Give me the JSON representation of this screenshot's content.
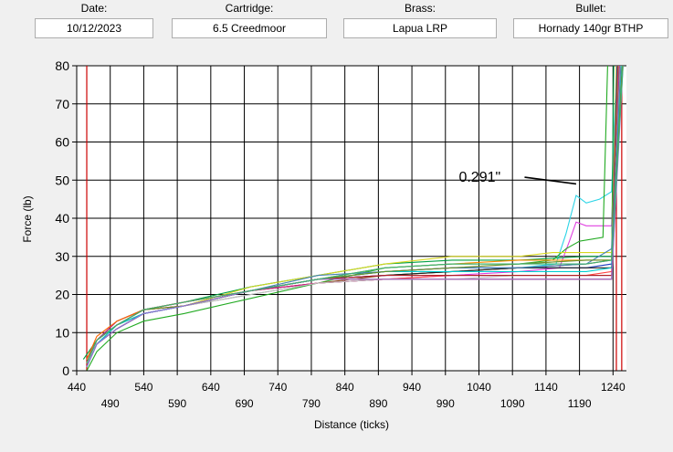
{
  "header": {
    "date_label": "Date:",
    "date_value": "10/12/2023",
    "cartridge_label": "Cartridge:",
    "cartridge_value": "6.5 Creedmoor",
    "brass_label": "Brass:",
    "brass_value": "Lapua LRP",
    "bullet_label": "Bullet:",
    "bullet_value": "Hornady 140gr BTHP"
  },
  "chart_data": {
    "type": "line",
    "title": "",
    "xlabel": "Distance (ticks)",
    "ylabel": "Force (lb)",
    "xlim": [
      440,
      1260
    ],
    "ylim": [
      0,
      80
    ],
    "grid": true,
    "xticks": [
      440,
      490,
      540,
      590,
      640,
      690,
      740,
      790,
      840,
      890,
      940,
      990,
      1040,
      1090,
      1140,
      1190,
      1240
    ],
    "yticks": [
      0,
      10,
      20,
      30,
      40,
      50,
      60,
      70,
      80
    ],
    "vertical_markers": [
      455,
      1245,
      1253
    ],
    "marker_color": "#cc0000",
    "annotation": {
      "text": "0.291\"",
      "x": 1010,
      "y": 51,
      "arrow_to_x": 1185,
      "arrow_to_y": 49
    },
    "series": [
      {
        "color": "#2bd4e6",
        "points": [
          [
            455,
            2
          ],
          [
            470,
            8
          ],
          [
            500,
            12
          ],
          [
            540,
            15
          ],
          [
            600,
            17
          ],
          [
            700,
            21
          ],
          [
            800,
            24
          ],
          [
            900,
            25
          ],
          [
            1000,
            26
          ],
          [
            1100,
            27
          ],
          [
            1155,
            28
          ],
          [
            1170,
            36
          ],
          [
            1185,
            46
          ],
          [
            1200,
            44
          ],
          [
            1220,
            45
          ],
          [
            1238,
            47
          ],
          [
            1243,
            70
          ],
          [
            1248,
            80
          ]
        ]
      },
      {
        "color": "#e040e0",
        "points": [
          [
            455,
            1
          ],
          [
            470,
            7
          ],
          [
            500,
            12
          ],
          [
            540,
            15
          ],
          [
            600,
            17
          ],
          [
            700,
            21
          ],
          [
            800,
            23
          ],
          [
            900,
            24
          ],
          [
            1000,
            25
          ],
          [
            1100,
            26
          ],
          [
            1160,
            27
          ],
          [
            1175,
            34
          ],
          [
            1185,
            39
          ],
          [
            1200,
            38
          ],
          [
            1238,
            38
          ],
          [
            1244,
            70
          ],
          [
            1249,
            80
          ]
        ]
      },
      {
        "color": "#22aa22",
        "points": [
          [
            455,
            0
          ],
          [
            470,
            5
          ],
          [
            500,
            10
          ],
          [
            540,
            13
          ],
          [
            600,
            15
          ],
          [
            700,
            19
          ],
          [
            800,
            23
          ],
          [
            900,
            27
          ],
          [
            1000,
            28
          ],
          [
            1100,
            28
          ],
          [
            1150,
            29
          ],
          [
            1170,
            32
          ],
          [
            1190,
            34
          ],
          [
            1225,
            35
          ],
          [
            1232,
            80
          ]
        ]
      },
      {
        "color": "#00a040",
        "points": [
          [
            450,
            3
          ],
          [
            470,
            8
          ],
          [
            500,
            13
          ],
          [
            540,
            16
          ],
          [
            600,
            18
          ],
          [
            700,
            22
          ],
          [
            800,
            25
          ],
          [
            900,
            28
          ],
          [
            1000,
            29
          ],
          [
            1100,
            29
          ],
          [
            1200,
            30
          ],
          [
            1238,
            30
          ],
          [
            1241,
            80
          ]
        ]
      },
      {
        "color": "#d8d820",
        "points": [
          [
            455,
            2
          ],
          [
            470,
            8
          ],
          [
            500,
            12
          ],
          [
            540,
            16
          ],
          [
            600,
            17
          ],
          [
            700,
            22
          ],
          [
            800,
            25
          ],
          [
            900,
            28
          ],
          [
            1000,
            30
          ],
          [
            1100,
            30
          ],
          [
            1150,
            31
          ],
          [
            1238,
            31
          ],
          [
            1245,
            80
          ]
        ]
      },
      {
        "color": "#1f3fbf",
        "points": [
          [
            455,
            2
          ],
          [
            470,
            8
          ],
          [
            500,
            12
          ],
          [
            540,
            15
          ],
          [
            600,
            17
          ],
          [
            700,
            21
          ],
          [
            800,
            24
          ],
          [
            900,
            26
          ],
          [
            1000,
            27
          ],
          [
            1100,
            27
          ],
          [
            1200,
            27
          ],
          [
            1238,
            28
          ],
          [
            1246,
            80
          ]
        ]
      },
      {
        "color": "#8b4513",
        "points": [
          [
            455,
            1
          ],
          [
            470,
            7
          ],
          [
            500,
            11
          ],
          [
            540,
            15
          ],
          [
            600,
            17
          ],
          [
            700,
            21
          ],
          [
            800,
            23
          ],
          [
            900,
            25
          ],
          [
            1000,
            26
          ],
          [
            1100,
            27
          ],
          [
            1200,
            28
          ],
          [
            1238,
            29
          ],
          [
            1247,
            80
          ]
        ]
      },
      {
        "color": "#ff4040",
        "points": [
          [
            455,
            2
          ],
          [
            470,
            8
          ],
          [
            500,
            12
          ],
          [
            540,
            16
          ],
          [
            600,
            17
          ],
          [
            700,
            21
          ],
          [
            800,
            23
          ],
          [
            900,
            24
          ],
          [
            1000,
            25
          ],
          [
            1100,
            25
          ],
          [
            1200,
            25
          ],
          [
            1238,
            26
          ],
          [
            1248,
            80
          ]
        ]
      },
      {
        "color": "#7f7f7f",
        "points": [
          [
            455,
            3
          ],
          [
            470,
            8
          ],
          [
            500,
            12
          ],
          [
            540,
            15
          ],
          [
            600,
            17
          ],
          [
            700,
            20
          ],
          [
            800,
            23
          ],
          [
            900,
            24
          ],
          [
            1000,
            24
          ],
          [
            1100,
            24
          ],
          [
            1200,
            24
          ],
          [
            1238,
            24
          ],
          [
            1249,
            80
          ]
        ]
      },
      {
        "color": "#202020",
        "points": [
          [
            455,
            1
          ],
          [
            470,
            7
          ],
          [
            500,
            11
          ],
          [
            540,
            15
          ],
          [
            600,
            17
          ],
          [
            700,
            21
          ],
          [
            800,
            24
          ],
          [
            900,
            25
          ],
          [
            1000,
            26
          ],
          [
            1100,
            27
          ],
          [
            1200,
            27
          ],
          [
            1238,
            27
          ],
          [
            1250,
            80
          ]
        ]
      },
      {
        "color": "#a020f0",
        "points": [
          [
            455,
            2
          ],
          [
            470,
            8
          ],
          [
            500,
            12
          ],
          [
            540,
            16
          ],
          [
            600,
            18
          ],
          [
            700,
            21
          ],
          [
            800,
            24
          ],
          [
            900,
            25
          ],
          [
            1000,
            25
          ],
          [
            1100,
            25
          ],
          [
            1200,
            25
          ],
          [
            1238,
            25
          ],
          [
            1250,
            80
          ]
        ]
      },
      {
        "color": "#ff8c00",
        "points": [
          [
            455,
            1
          ],
          [
            470,
            7
          ],
          [
            500,
            12
          ],
          [
            540,
            15
          ],
          [
            600,
            17
          ],
          [
            700,
            21
          ],
          [
            800,
            24
          ],
          [
            900,
            27
          ],
          [
            1000,
            28
          ],
          [
            1100,
            29
          ],
          [
            1200,
            29
          ],
          [
            1238,
            29
          ],
          [
            1251,
            80
          ]
        ]
      },
      {
        "color": "#8fbc8f",
        "points": [
          [
            455,
            2
          ],
          [
            470,
            8
          ],
          [
            500,
            12
          ],
          [
            540,
            16
          ],
          [
            600,
            17
          ],
          [
            700,
            21
          ],
          [
            800,
            24
          ],
          [
            900,
            27
          ],
          [
            1000,
            28
          ],
          [
            1100,
            28
          ],
          [
            1200,
            29
          ],
          [
            1238,
            29
          ],
          [
            1251,
            80
          ]
        ]
      },
      {
        "color": "#c71585",
        "points": [
          [
            455,
            2
          ],
          [
            470,
            8
          ],
          [
            500,
            13
          ],
          [
            540,
            16
          ],
          [
            600,
            18
          ],
          [
            700,
            21
          ],
          [
            800,
            23
          ],
          [
            900,
            24
          ],
          [
            1000,
            24
          ],
          [
            1100,
            24
          ],
          [
            1200,
            24
          ],
          [
            1238,
            24
          ],
          [
            1252,
            80
          ]
        ]
      },
      {
        "color": "#4682b4",
        "points": [
          [
            455,
            1
          ],
          [
            470,
            7
          ],
          [
            500,
            12
          ],
          [
            540,
            15
          ],
          [
            600,
            17
          ],
          [
            700,
            21
          ],
          [
            800,
            25
          ],
          [
            900,
            26
          ],
          [
            1000,
            27
          ],
          [
            1100,
            27
          ],
          [
            1200,
            28
          ],
          [
            1238,
            32
          ],
          [
            1252,
            80
          ]
        ]
      },
      {
        "color": "#c0c0c0",
        "points": [
          [
            455,
            2
          ],
          [
            470,
            8
          ],
          [
            500,
            12
          ],
          [
            540,
            16
          ],
          [
            600,
            17
          ],
          [
            700,
            20
          ],
          [
            800,
            23
          ],
          [
            900,
            24
          ],
          [
            1000,
            24
          ],
          [
            1100,
            25
          ],
          [
            1200,
            25
          ],
          [
            1238,
            25
          ],
          [
            1253,
            80
          ]
        ]
      },
      {
        "color": "#ff6600",
        "points": [
          [
            455,
            3
          ],
          [
            470,
            9
          ],
          [
            500,
            13
          ],
          [
            540,
            16
          ],
          [
            600,
            18
          ],
          [
            700,
            21
          ],
          [
            800,
            24
          ],
          [
            900,
            24
          ],
          [
            1000,
            24
          ],
          [
            1100,
            24
          ],
          [
            1200,
            24
          ],
          [
            1238,
            24
          ],
          [
            1253,
            80
          ]
        ]
      },
      {
        "color": "#00ced1",
        "points": [
          [
            455,
            1
          ],
          [
            470,
            7
          ],
          [
            500,
            12
          ],
          [
            540,
            15
          ],
          [
            600,
            17
          ],
          [
            700,
            21
          ],
          [
            800,
            24
          ],
          [
            900,
            26
          ],
          [
            1000,
            26
          ],
          [
            1100,
            26
          ],
          [
            1200,
            26
          ],
          [
            1238,
            27
          ],
          [
            1253,
            80
          ]
        ]
      },
      {
        "color": "#b22222",
        "points": [
          [
            455,
            2
          ],
          [
            470,
            8
          ],
          [
            500,
            12
          ],
          [
            540,
            16
          ],
          [
            600,
            17
          ],
          [
            700,
            21
          ],
          [
            800,
            24
          ],
          [
            900,
            25
          ],
          [
            1000,
            25
          ],
          [
            1100,
            25
          ],
          [
            1200,
            25
          ],
          [
            1238,
            25
          ],
          [
            1254,
            80
          ]
        ]
      },
      {
        "color": "#6b8e23",
        "points": [
          [
            455,
            2
          ],
          [
            470,
            8
          ],
          [
            500,
            12
          ],
          [
            540,
            16
          ],
          [
            600,
            17
          ],
          [
            700,
            21
          ],
          [
            800,
            24
          ],
          [
            900,
            26
          ],
          [
            1000,
            27
          ],
          [
            1100,
            28
          ],
          [
            1200,
            29
          ],
          [
            1238,
            29
          ],
          [
            1254,
            80
          ]
        ]
      },
      {
        "color": "#9370db",
        "points": [
          [
            455,
            1
          ],
          [
            470,
            7
          ],
          [
            500,
            11
          ],
          [
            540,
            15
          ],
          [
            600,
            17
          ],
          [
            700,
            21
          ],
          [
            800,
            24
          ],
          [
            900,
            24
          ],
          [
            1000,
            24
          ],
          [
            1100,
            24
          ],
          [
            1200,
            24
          ],
          [
            1238,
            24
          ],
          [
            1255,
            80
          ]
        ]
      },
      {
        "color": "#3cb371",
        "points": [
          [
            455,
            2
          ],
          [
            470,
            8
          ],
          [
            500,
            12
          ],
          [
            540,
            16
          ],
          [
            600,
            18
          ],
          [
            700,
            21
          ],
          [
            800,
            24
          ],
          [
            900,
            27
          ],
          [
            1000,
            28
          ],
          [
            1100,
            28
          ],
          [
            1200,
            28
          ],
          [
            1238,
            29
          ],
          [
            1255,
            80
          ]
        ]
      }
    ]
  }
}
